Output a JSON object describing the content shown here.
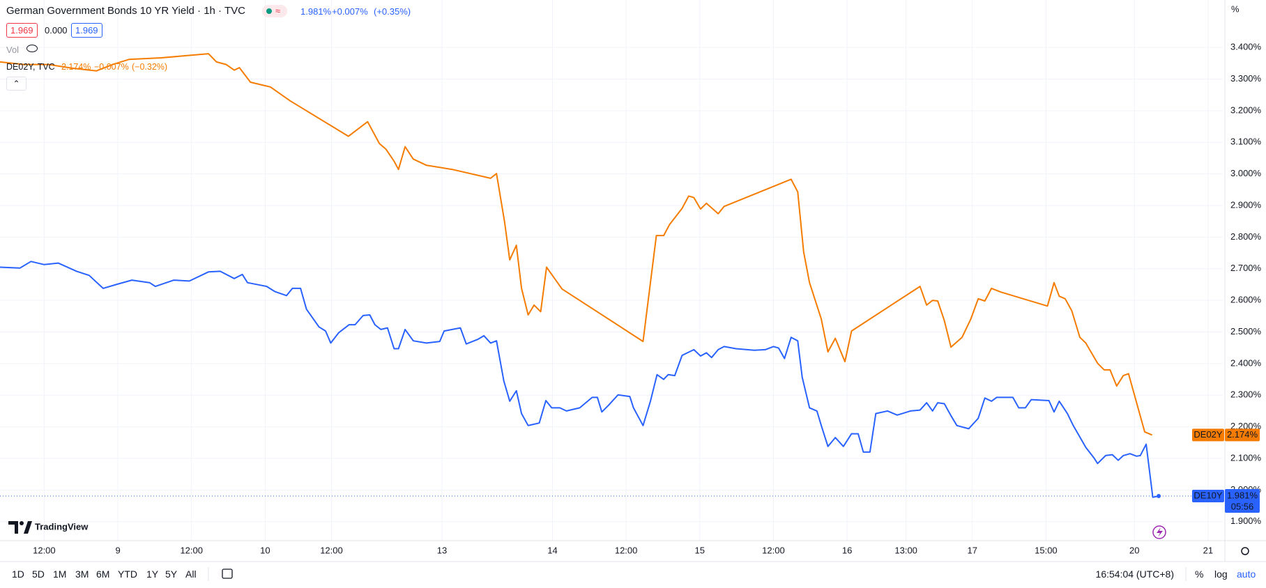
{
  "header": {
    "title": "German Government Bonds 10 YR Yield · 1h · TVC",
    "badge": "≈",
    "last": "1.981%",
    "change": "+0.007%",
    "change_pct": "(+0.35%)"
  },
  "inputs": [
    "1.969",
    "0.000",
    "1.969"
  ],
  "vol_label": "Vol",
  "compare": {
    "name": "DE02Y, TVC",
    "last": "2.174%",
    "change": "−0.007%",
    "change_pct": "(−0.32%)"
  },
  "axis_unit": "%",
  "chart_data": {
    "type": "line",
    "xlim": [
      0,
      166
    ],
    "ylim": [
      1.84,
      3.55
    ],
    "grid": true,
    "xticks": [
      {
        "value": 6,
        "label": "12:00"
      },
      {
        "value": 16,
        "label": "9"
      },
      {
        "value": 26,
        "label": "12:00"
      },
      {
        "value": 36,
        "label": "10"
      },
      {
        "value": 45,
        "label": "12:00"
      },
      {
        "value": 60,
        "label": "13"
      },
      {
        "value": 75,
        "label": "14"
      },
      {
        "value": 85,
        "label": "12:00"
      },
      {
        "value": 95,
        "label": "15"
      },
      {
        "value": 105,
        "label": "12:00"
      },
      {
        "value": 115,
        "label": "16"
      },
      {
        "value": 123,
        "label": "13:00"
      },
      {
        "value": 132,
        "label": "17"
      },
      {
        "value": 142,
        "label": "15:00"
      },
      {
        "value": 154,
        "label": "20"
      },
      {
        "value": 164,
        "label": "21"
      }
    ],
    "yticks": [
      {
        "value": 1.9,
        "label": "1.900%"
      },
      {
        "value": 2.0,
        "label": "2.000%"
      },
      {
        "value": 2.1,
        "label": "2.100%"
      },
      {
        "value": 2.2,
        "label": "2.200%"
      },
      {
        "value": 2.3,
        "label": "2.300%"
      },
      {
        "value": 2.4,
        "label": "2.400%"
      },
      {
        "value": 2.5,
        "label": "2.500%"
      },
      {
        "value": 2.6,
        "label": "2.600%"
      },
      {
        "value": 2.7,
        "label": "2.700%"
      },
      {
        "value": 2.8,
        "label": "2.800%"
      },
      {
        "value": 2.9,
        "label": "2.900%"
      },
      {
        "value": 3.0,
        "label": "3.000%"
      },
      {
        "value": 3.1,
        "label": "3.100%"
      },
      {
        "value": 3.2,
        "label": "3.200%"
      },
      {
        "value": 3.3,
        "label": "3.300%"
      },
      {
        "value": 3.4,
        "label": "3.400%"
      }
    ],
    "series": [
      {
        "name": "DE02Y",
        "color": "#f57c00",
        "price_label": "2.174%",
        "x": [
          0,
          3.3,
          6.6,
          9.9,
          13.1,
          15.3,
          17.5,
          21.9,
          28.3,
          29.4,
          30.7,
          31.8,
          32.5,
          34.0,
          36.7,
          39.4,
          47.3,
          49.9,
          51.5,
          52.4,
          53.5,
          54.1,
          55.0,
          56.1,
          57.9,
          61.4,
          66.6,
          67.4,
          68.5,
          69.2,
          70.1,
          70.8,
          71.7,
          72.5,
          73.4,
          74.2,
          74.9,
          76.3,
          87.3,
          88.3,
          89.1,
          90.1,
          90.9,
          92.6,
          93.5,
          94.2,
          95.1,
          95.9,
          97.5,
          98.3,
          107.4,
          108.3,
          109.1,
          109.9,
          111.5,
          112.4,
          113.4,
          114.7,
          115.6,
          124.9,
          125.8,
          126.6,
          127.3,
          128.2,
          129.1,
          130.6,
          131.8,
          132.8,
          133.7,
          134.6,
          135.9,
          142.2,
          143.1,
          143.8,
          144.6,
          145.5,
          146.6,
          147.4,
          149.0,
          149.9,
          150.7,
          151.6,
          152.5,
          153.2,
          155.4,
          156.4
        ],
        "values": [
          3.354,
          3.346,
          3.346,
          3.334,
          3.326,
          3.346,
          3.362,
          3.367,
          3.38,
          3.354,
          3.346,
          3.328,
          3.336,
          3.29,
          3.275,
          3.231,
          3.119,
          3.165,
          3.096,
          3.078,
          3.04,
          3.014,
          3.086,
          3.047,
          3.027,
          3.014,
          2.986,
          3.001,
          2.848,
          2.728,
          2.774,
          2.638,
          2.554,
          2.585,
          2.564,
          2.705,
          2.682,
          2.636,
          2.47,
          2.656,
          2.805,
          2.805,
          2.84,
          2.891,
          2.93,
          2.925,
          2.889,
          2.907,
          2.874,
          2.897,
          2.983,
          2.943,
          2.753,
          2.656,
          2.541,
          2.437,
          2.48,
          2.406,
          2.503,
          2.644,
          2.585,
          2.6,
          2.598,
          2.536,
          2.452,
          2.483,
          2.541,
          2.605,
          2.598,
          2.638,
          2.626,
          2.582,
          2.656,
          2.613,
          2.605,
          2.567,
          2.483,
          2.465,
          2.401,
          2.38,
          2.38,
          2.329,
          2.362,
          2.368,
          2.184,
          2.174
        ]
      },
      {
        "name": "DE10Y",
        "color": "#2962ff",
        "price_label": "1.981%",
        "countdown": "05:56",
        "x": [
          0,
          2.7,
          4.2,
          6.0,
          7.9,
          10.4,
          12.1,
          14.0,
          15.9,
          17.9,
          20.3,
          21.1,
          23.6,
          25.7,
          28.3,
          29.9,
          31.8,
          32.9,
          33.6,
          36.2,
          37.3,
          38.9,
          39.7,
          40.8,
          41.6,
          43.3,
          44.2,
          44.9,
          46.0,
          47.4,
          48.2,
          49.3,
          50.2,
          50.9,
          51.7,
          52.6,
          53.5,
          54.1,
          55.0,
          56.1,
          57.9,
          59.7,
          60.3,
          62.5,
          63.3,
          64.9,
          65.7,
          66.6,
          67.4,
          68.4,
          69.2,
          70.1,
          70.8,
          71.7,
          73.2,
          74.1,
          74.9,
          76.0,
          76.9,
          78.7,
          80.4,
          81.1,
          81.7,
          82.6,
          83.9,
          85.5,
          86.0,
          87.3,
          88.3,
          89.2,
          90.1,
          90.7,
          91.6,
          92.6,
          94.2,
          95.1,
          95.9,
          96.6,
          97.5,
          98.3,
          99.9,
          102.4,
          103.9,
          105.0,
          105.7,
          106.5,
          107.4,
          108.3,
          108.9,
          109.9,
          110.9,
          111.5,
          112.4,
          113.4,
          114.5,
          115.6,
          116.5,
          117.2,
          118.1,
          118.9,
          120.5,
          121.8,
          123.6,
          124.9,
          125.8,
          126.6,
          127.3,
          128.2,
          129.1,
          129.9,
          131.5,
          132.8,
          133.7,
          134.6,
          135.3,
          137.5,
          138.3,
          139.2,
          140.0,
          142.4,
          143.1,
          143.8,
          144.9,
          145.7,
          147.4,
          148.5,
          149.0,
          150.1,
          151.0,
          151.8,
          152.5,
          153.4,
          154.3,
          154.8,
          155.6,
          156.5,
          157.3
        ],
        "values": [
          2.705,
          2.702,
          2.723,
          2.713,
          2.718,
          2.692,
          2.679,
          2.638,
          2.651,
          2.664,
          2.656,
          2.644,
          2.664,
          2.661,
          2.69,
          2.692,
          2.669,
          2.682,
          2.656,
          2.644,
          2.628,
          2.615,
          2.638,
          2.638,
          2.572,
          2.516,
          2.503,
          2.465,
          2.498,
          2.523,
          2.523,
          2.552,
          2.554,
          2.523,
          2.508,
          2.513,
          2.447,
          2.447,
          2.508,
          2.472,
          2.465,
          2.47,
          2.503,
          2.513,
          2.462,
          2.477,
          2.488,
          2.465,
          2.472,
          2.345,
          2.281,
          2.314,
          2.242,
          2.204,
          2.212,
          2.283,
          2.26,
          2.26,
          2.25,
          2.26,
          2.293,
          2.293,
          2.247,
          2.268,
          2.301,
          2.296,
          2.26,
          2.204,
          2.281,
          2.365,
          2.35,
          2.365,
          2.362,
          2.426,
          2.444,
          2.424,
          2.434,
          2.419,
          2.444,
          2.454,
          2.447,
          2.442,
          2.444,
          2.454,
          2.449,
          2.416,
          2.483,
          2.472,
          2.357,
          2.26,
          2.25,
          2.204,
          2.138,
          2.166,
          2.138,
          2.178,
          2.178,
          2.12,
          2.12,
          2.242,
          2.25,
          2.237,
          2.25,
          2.253,
          2.276,
          2.25,
          2.276,
          2.273,
          2.235,
          2.204,
          2.194,
          2.227,
          2.291,
          2.281,
          2.293,
          2.293,
          2.26,
          2.26,
          2.286,
          2.283,
          2.247,
          2.281,
          2.242,
          2.204,
          2.135,
          2.102,
          2.084,
          2.109,
          2.112,
          2.094,
          2.109,
          2.115,
          2.107,
          2.109,
          2.145,
          1.977,
          1.981
        ]
      }
    ]
  },
  "logo": "TradingView",
  "toolbar": {
    "ranges": [
      "1D",
      "5D",
      "1M",
      "3M",
      "6M",
      "YTD",
      "1Y",
      "5Y",
      "All"
    ],
    "clock": "16:54:04 (UTC+8)",
    "options": [
      "%",
      "log",
      "auto"
    ]
  }
}
